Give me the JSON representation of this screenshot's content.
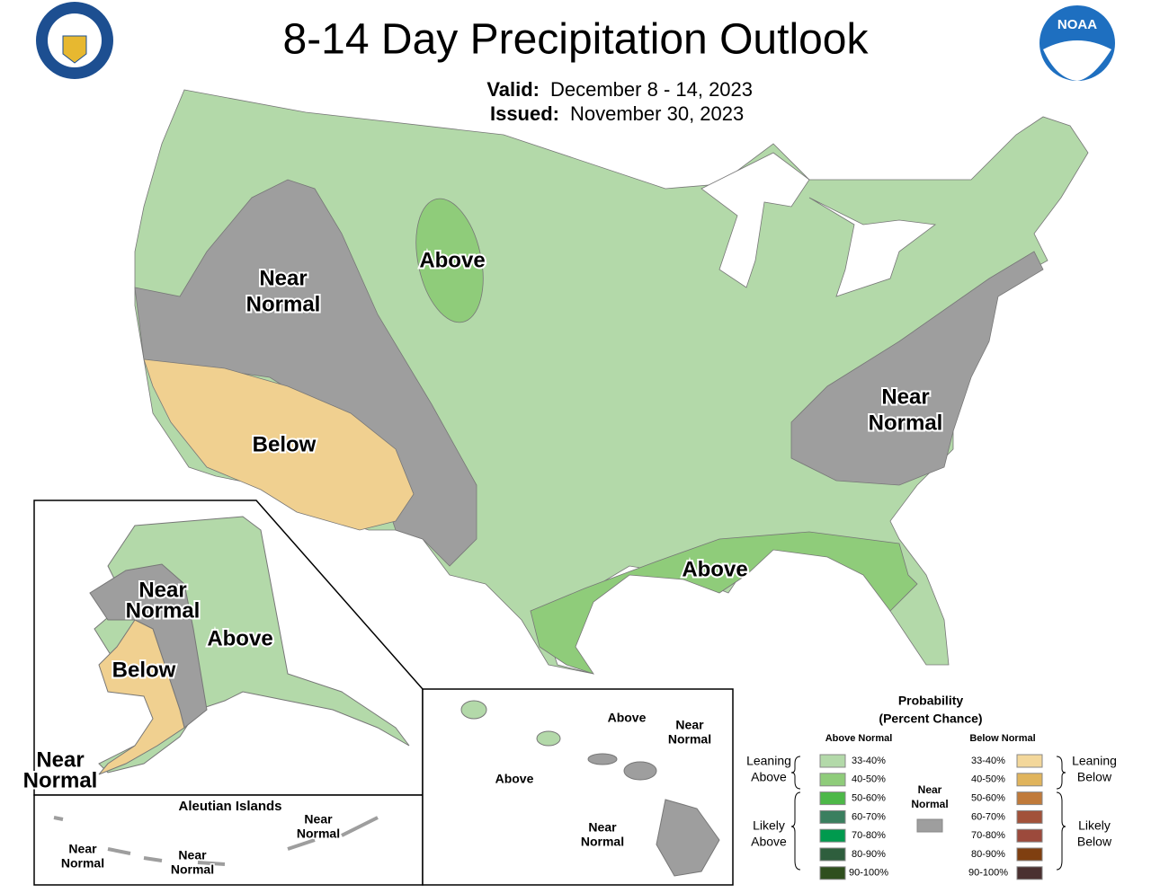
{
  "header": {
    "title": "8-14 Day Precipitation Outlook",
    "valid_label": "Valid:",
    "valid_value": "December 8 - 14, 2023",
    "issued_label": "Issued:",
    "issued_value": "November 30, 2023",
    "noaa_logo": "NOAA"
  },
  "conus_labels": [
    [
      "Near",
      "Normal"
    ],
    [
      "Above"
    ],
    [
      "Below"
    ],
    [
      "Near",
      "Normal"
    ],
    [
      "Above"
    ]
  ],
  "alaska_labels": [
    [
      "Near",
      "Normal"
    ],
    [
      "Above"
    ],
    [
      "Below"
    ],
    [
      "Near",
      "Normal"
    ]
  ],
  "aleutian": {
    "title": "Aleutian Islands",
    "labels": [
      [
        "Near",
        "Normal"
      ],
      [
        "Near",
        "Normal"
      ],
      [
        "Near",
        "Normal"
      ]
    ]
  },
  "hawaii_labels": [
    [
      "Above"
    ],
    [
      "Above"
    ],
    [
      "Near",
      "Normal"
    ],
    [
      "Near",
      "Normal"
    ]
  ],
  "legend": {
    "title": "Probability",
    "subtitle": "(Percent Chance)",
    "above_header": "Above Normal",
    "below_header": "Below Normal",
    "above_rows": [
      {
        "label": "33-40%",
        "color": "#b3d9a9"
      },
      {
        "label": "40-50%",
        "color": "#8fcc7a"
      },
      {
        "label": "50-60%",
        "color": "#4db848"
      },
      {
        "label": "60-70%",
        "color": "#3a7f5f"
      },
      {
        "label": "70-80%",
        "color": "#009a4e"
      },
      {
        "label": "80-90%",
        "color": "#2e5e3d"
      },
      {
        "label": "90-100%",
        "color": "#2f4f1e"
      }
    ],
    "below_rows": [
      {
        "label": "33-40%",
        "color": "#f3d79a"
      },
      {
        "label": "40-50%",
        "color": "#e0b45c"
      },
      {
        "label": "50-60%",
        "color": "#c07a3a"
      },
      {
        "label": "60-70%",
        "color": "#a2523a"
      },
      {
        "label": "70-80%",
        "color": "#9c4a3c"
      },
      {
        "label": "80-90%",
        "color": "#7f3f10"
      },
      {
        "label": "90-100%",
        "color": "#4a3030"
      }
    ],
    "leaning_above": [
      "Leaning",
      "Above"
    ],
    "likely_above": [
      "Likely",
      "Above"
    ],
    "near_normal": [
      "Near",
      "Normal"
    ],
    "near_color": "#9e9e9e",
    "leaning_below": [
      "Leaning",
      "Below"
    ],
    "likely_below": [
      "Likely",
      "Below"
    ]
  }
}
